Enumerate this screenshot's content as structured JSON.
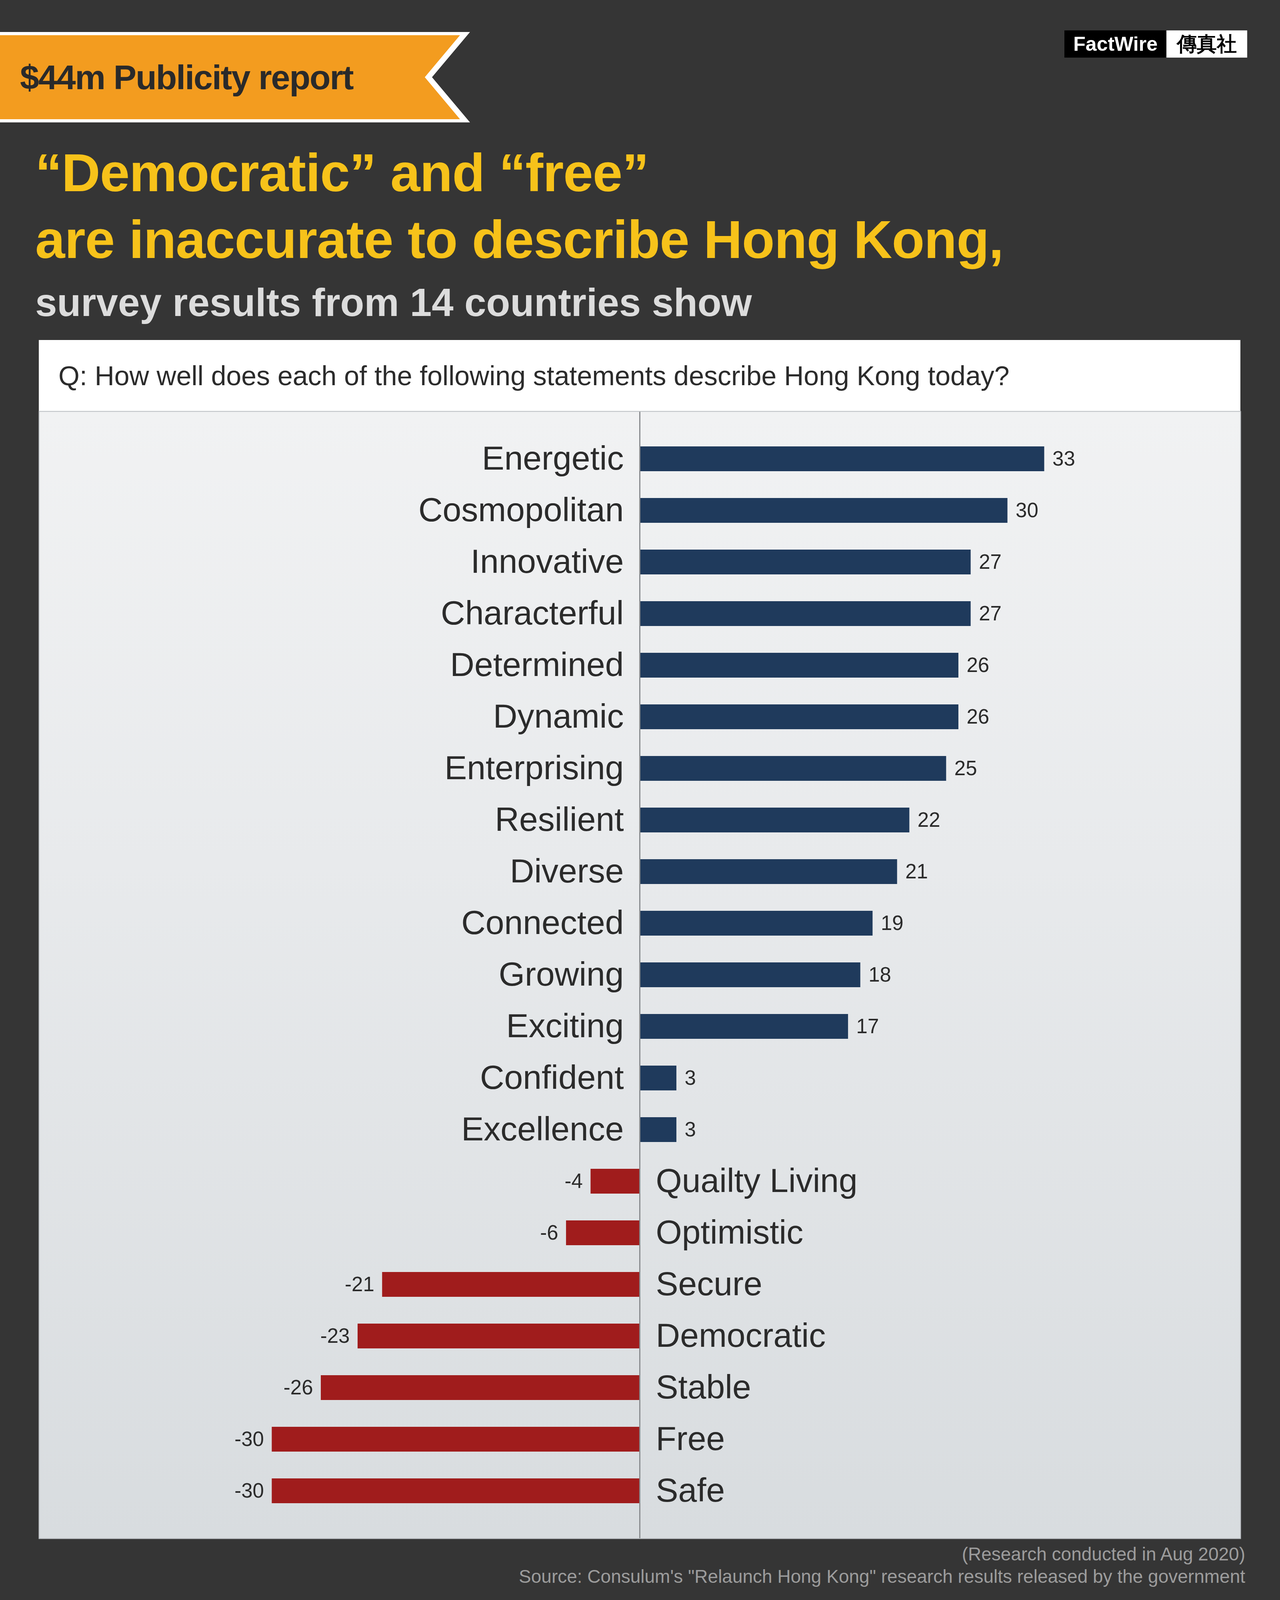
{
  "header": {
    "tag": "$44m Publicity report",
    "logo": [
      "FactWire",
      "傳真社"
    ],
    "title": [
      "“Democratic” and “free”",
      "are inaccurate to describe Hong Kong,"
    ],
    "subtitle": "survey results from 14 countries show"
  },
  "chart_data": {
    "type": "bar",
    "orientation": "horizontal",
    "title": "Q: How well does each of the following statements describe Hong Kong today?",
    "categories": [
      "Energetic",
      "Cosmopolitan",
      "Innovative",
      "Characterful",
      "Determined",
      "Dynamic",
      "Enterprising",
      "Resilient",
      "Diverse",
      "Connected",
      "Growing",
      "Exciting",
      "Confident",
      "Excellence",
      "Quailty Living",
      "Optimistic",
      "Secure",
      "Democratic",
      "Stable",
      "Free",
      "Safe"
    ],
    "values": [
      33,
      30,
      27,
      27,
      26,
      26,
      25,
      22,
      21,
      19,
      18,
      17,
      3,
      3,
      -4,
      -6,
      -21,
      -23,
      -26,
      -30,
      -30
    ],
    "colors": [
      "#1f3a5c",
      "#1f3a5c",
      "#1f3a5c",
      "#1f3a5c",
      "#1f3a5c",
      "#1f3a5c",
      "#1f3a5c",
      "#1f3a5c",
      "#1f3a5c",
      "#1f3a5c",
      "#1f3a5c",
      "#1f3a5c",
      "#1f3a5c",
      "#1f3a5c",
      "#a01c1c",
      "#a01c1c",
      "#a01c1c",
      "#a01c1c",
      "#a01c1c",
      "#a01c1c",
      "#a01c1c"
    ],
    "xlim": [
      -49,
      49
    ],
    "data_labels": true
  },
  "footer": {
    "note": "(Research conducted in Aug 2020)",
    "source": "Source: Consulum's \"Relaunch Hong Kong\" research results released by the government"
  }
}
